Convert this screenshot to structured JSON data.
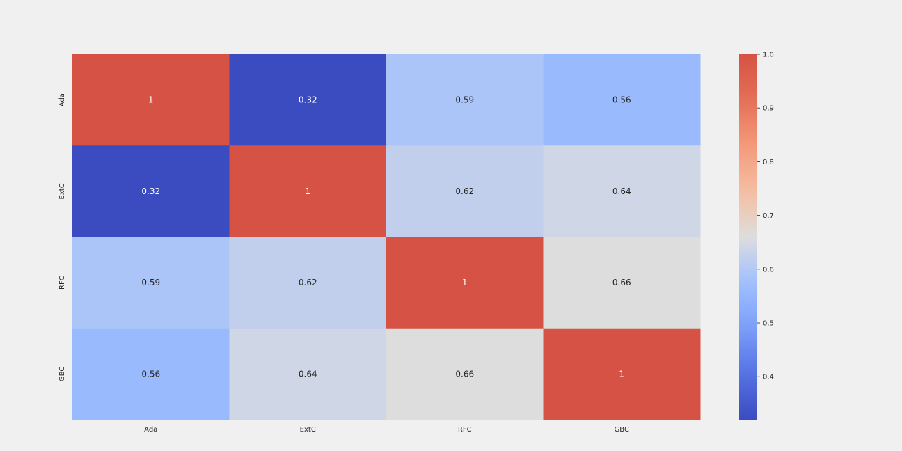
{
  "chart_data": {
    "type": "heatmap",
    "title": "",
    "xlabel": "",
    "ylabel": "",
    "x_categories": [
      "Ada",
      "ExtC",
      "RFC",
      "GBC"
    ],
    "y_categories": [
      "Ada",
      "ExtC",
      "RFC",
      "GBC"
    ],
    "values": [
      [
        1,
        0.32,
        0.59,
        0.56
      ],
      [
        0.32,
        1,
        0.62,
        0.64
      ],
      [
        0.59,
        0.62,
        1,
        0.66
      ],
      [
        0.56,
        0.64,
        0.66,
        1
      ]
    ],
    "cell_labels": [
      [
        "1",
        "0.32",
        "0.59",
        "0.56"
      ],
      [
        "0.32",
        "1",
        "0.62",
        "0.64"
      ],
      [
        "0.59",
        "0.62",
        "1",
        "0.66"
      ],
      [
        "0.56",
        "0.64",
        "0.66",
        "1"
      ]
    ],
    "colormap": "coolwarm",
    "colorbar": {
      "range": [
        0.32,
        1.0
      ],
      "ticks": [
        0.4,
        0.5,
        0.6,
        0.7,
        0.8,
        0.9,
        1.0
      ],
      "tick_labels": [
        "0.4",
        "0.5",
        "0.6",
        "0.7",
        "0.8",
        "0.9",
        "1.0"
      ]
    },
    "colors": {
      "background": "#f0f0f0",
      "low": "#3b4cc0",
      "high": "#d65244",
      "text_dark": "#262626",
      "text_light": "#ffffff"
    }
  }
}
